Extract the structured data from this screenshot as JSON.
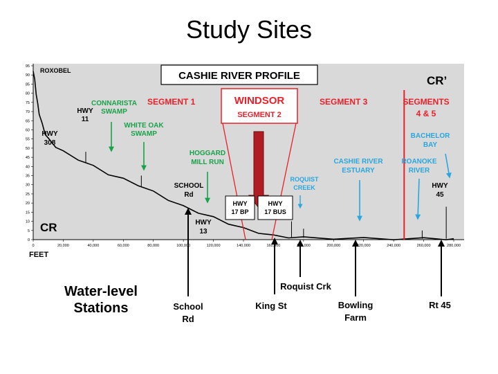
{
  "slide_title": "Study Sites",
  "colors": {
    "plot_bg": "#d9d9d9",
    "profile": "#000000",
    "segment_red": "#e8202a",
    "windsor_arrow": "#b01c22",
    "green": "#1aa24a",
    "blue": "#29a6de",
    "black": "#000000"
  },
  "chart_data": {
    "type": "line",
    "title": "CASHIE RIVER PROFILE",
    "xlabel": "FEET",
    "ylabel": "",
    "xlim": [
      0,
      280000
    ],
    "ylim": [
      0,
      95
    ],
    "x_ticks": [
      "0",
      "20,000",
      "40,000",
      "60,000",
      "80,000",
      "100,000",
      "120,000",
      "140,000",
      "160,000",
      "180,000",
      "200,000",
      "220,000",
      "240,000",
      "260,000",
      "280,000"
    ],
    "y_ticks": [
      "0",
      "5",
      "10",
      "15",
      "20",
      "25",
      "30",
      "35",
      "40",
      "45",
      "50",
      "55",
      "60",
      "65",
      "70",
      "75",
      "80",
      "85",
      "90",
      "95"
    ],
    "grid": false,
    "corner_labels": {
      "left": "CR",
      "right": "CR’"
    },
    "series": [
      {
        "x": [
          0,
          1000,
          2000,
          3000,
          4000,
          6000,
          8000,
          10000,
          15000,
          20000,
          30000,
          40000,
          50000,
          60000,
          70000,
          80000,
          90000,
          100000,
          110000,
          120000,
          130000,
          140000,
          150000,
          160000,
          170000,
          180000,
          200000,
          220000,
          240000,
          260000,
          275000,
          280000
        ],
        "y": [
          92,
          87,
          80,
          74,
          69,
          63,
          58,
          55,
          51,
          48,
          44,
          40,
          36,
          33,
          30,
          26,
          22,
          18,
          15,
          12,
          9,
          6,
          4,
          2,
          1.5,
          1,
          0.8,
          0.6,
          0.5,
          0.5,
          0.5,
          0.5
        ]
      }
    ],
    "spikes": [
      {
        "x": 35000,
        "y": 48
      },
      {
        "x": 72000,
        "y": 35
      },
      {
        "x": 172000,
        "y": 10
      },
      {
        "x": 180000,
        "y": 6
      },
      {
        "x": 259000,
        "y": 5
      },
      {
        "x": 275000,
        "y": 18
      }
    ],
    "segments": [
      {
        "label": "SEGMENT 1"
      },
      {
        "label": "SEGMENT 3"
      },
      {
        "label": "SEGMENTS",
        "label2": "4 & 5"
      }
    ],
    "segment_boundary_x": 247000,
    "windsor": {
      "label": "WINDSOR",
      "sublabel": "SEGMENT 2"
    },
    "annotations": {
      "roxobel": "ROXOBEL",
      "hwy11": [
        "HWY",
        "11"
      ],
      "hwy308": [
        "HWY",
        "308"
      ],
      "connarista": [
        "CONNARISTA",
        "SWAMP"
      ],
      "whiteoak": [
        "WHITE OAK",
        "SWAMP"
      ],
      "hoggard": [
        "HOGGARD",
        "MILL RUN"
      ],
      "schoolrd": [
        "SCHOOL",
        "Rd"
      ],
      "hwy13": [
        "HWY",
        "13"
      ],
      "hwy17bp": [
        "HWY",
        "17 BP"
      ],
      "hwy17bus": [
        "HWY",
        "17 BUS"
      ],
      "roquist_creek": [
        "ROQUIST",
        "CREEK"
      ],
      "estuary": [
        "CASHIE RIVER",
        "ESTUARY"
      ],
      "roanoke": [
        "ROANOKE",
        "RIVER"
      ],
      "bachelor": [
        "BACHELOR",
        "BAY"
      ],
      "hwy45": [
        "HWY",
        "45"
      ]
    },
    "stations_title": [
      "Water-level",
      "Stations"
    ],
    "stations": [
      {
        "label": [
          "School",
          "Rd"
        ]
      },
      {
        "label": [
          "King St"
        ]
      },
      {
        "label": [
          "Roquist Crk"
        ]
      },
      {
        "label": [
          "Bowling",
          "Farm"
        ]
      },
      {
        "label": [
          "Rt 45"
        ]
      }
    ]
  }
}
